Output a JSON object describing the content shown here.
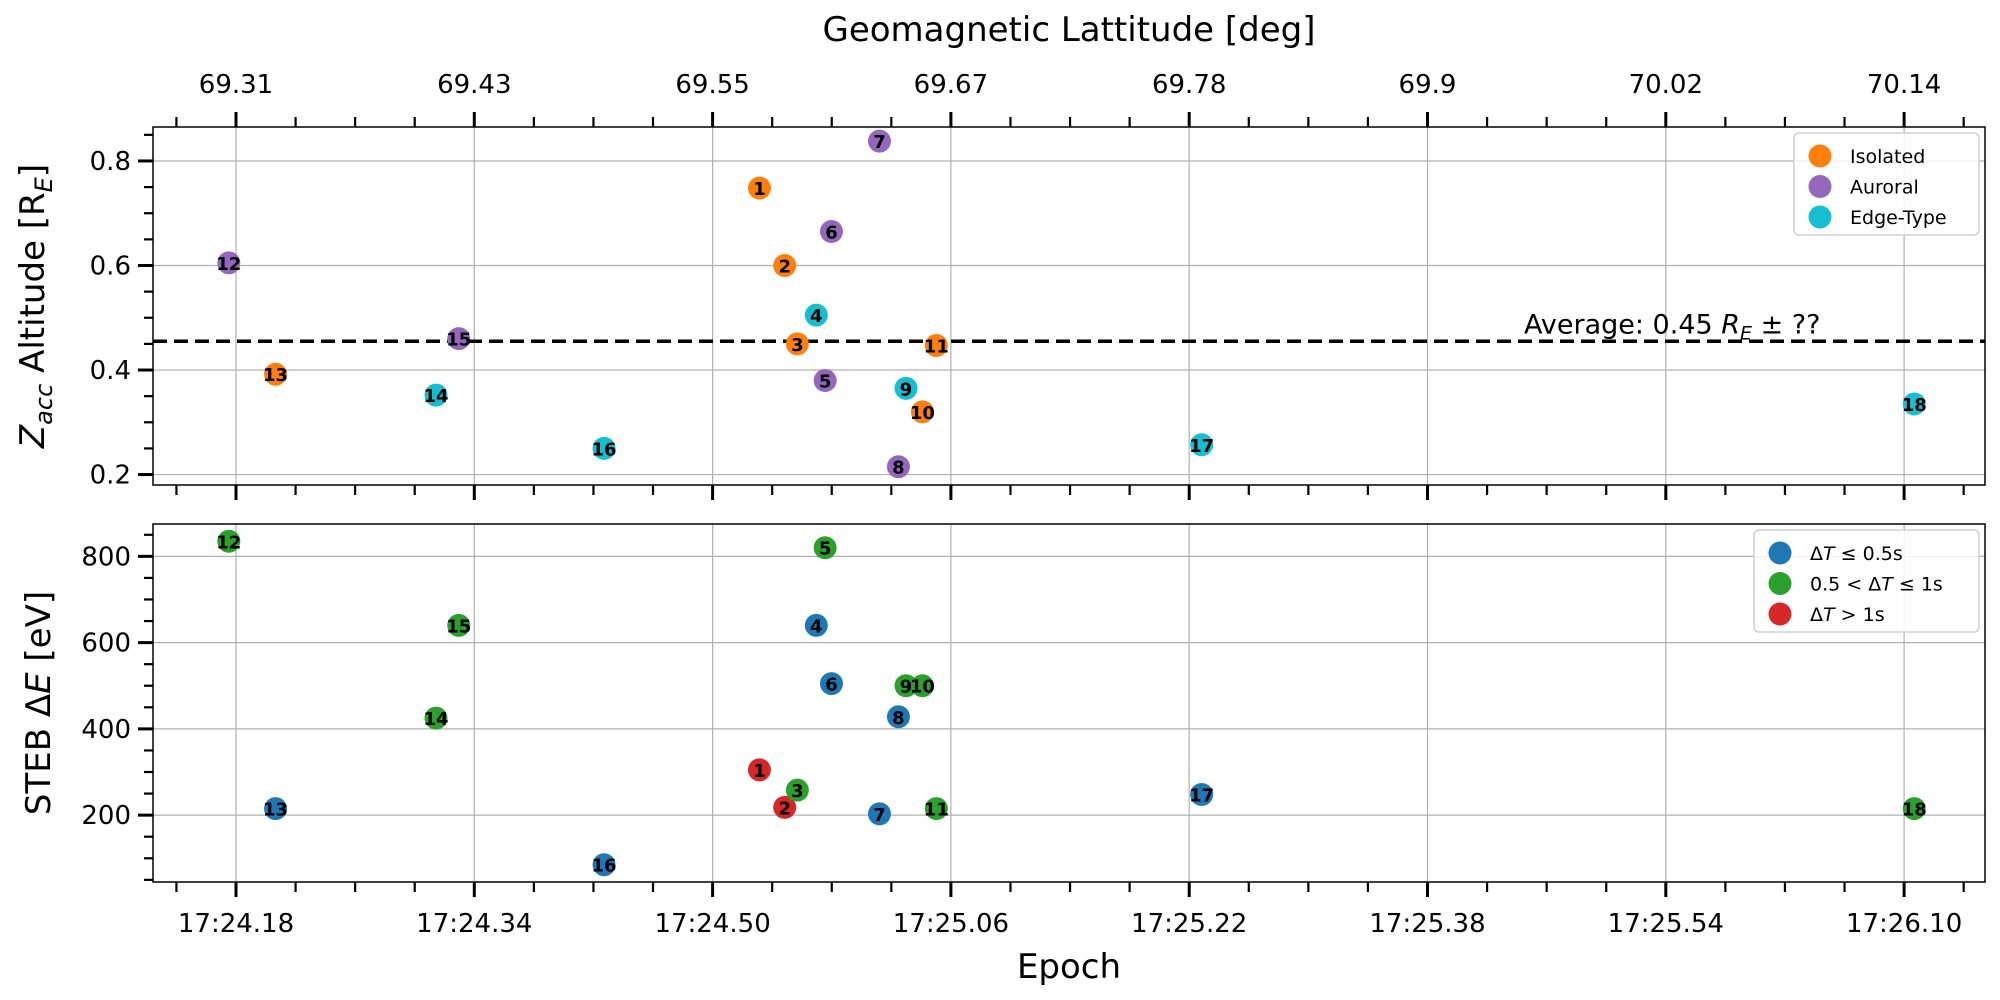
{
  "chart_data": [
    {
      "type": "scatter",
      "panel": "top",
      "top_axis_title": "Geomagnetic Lattitude [deg]",
      "top_tick_labels": [
        "69.31",
        "69.43",
        "69.55",
        "69.67",
        "69.78",
        "69.9",
        "70.02",
        "70.14"
      ],
      "ylabel": "Z_acc Altitude [R_E]",
      "ylabel_parts": {
        "main": "Z",
        "sub": "acc",
        "mid": " Altitude [R",
        "sub2": "E",
        "end": "]"
      },
      "y_ticks": [
        0.2,
        0.4,
        0.6,
        0.8
      ],
      "y_tick_labels": [
        "0.2",
        "0.4",
        "0.6",
        "0.8"
      ],
      "ylim": [
        0.18,
        0.865
      ],
      "grid": true,
      "legend_position": "top-right",
      "legend": [
        {
          "name": "Isolated",
          "color": "#ff7f0e"
        },
        {
          "name": "Auroral",
          "color": "#9467bd"
        },
        {
          "name": "Edge-Type",
          "color": "#17becf"
        }
      ],
      "average_line": {
        "y": 0.455,
        "style": "dashed"
      },
      "annotation": {
        "prefix": "Average: 0.45 ",
        "symbol": "R",
        "sub": "E",
        "suffix": " ± ??"
      },
      "points": [
        {
          "id": "1",
          "x": 24.6,
          "y": 0.748,
          "category": "Isolated"
        },
        {
          "id": "2",
          "x": 24.62,
          "y": 0.6,
          "category": "Isolated"
        },
        {
          "id": "3",
          "x": 24.63,
          "y": 0.45,
          "category": "Isolated"
        },
        {
          "id": "4",
          "x": 24.645,
          "y": 0.505,
          "category": "Edge-Type"
        },
        {
          "id": "5",
          "x": 24.652,
          "y": 0.38,
          "category": "Auroral"
        },
        {
          "id": "6",
          "x": 24.657,
          "y": 0.665,
          "category": "Auroral"
        },
        {
          "id": "7",
          "x": 24.695,
          "y": 0.838,
          "category": "Auroral"
        },
        {
          "id": "8",
          "x": 24.71,
          "y": 0.215,
          "category": "Auroral"
        },
        {
          "id": "9",
          "x": 24.716,
          "y": 0.365,
          "category": "Edge-Type"
        },
        {
          "id": "10",
          "x": 24.729,
          "y": 0.32,
          "category": "Isolated"
        },
        {
          "id": "11",
          "x": 24.74,
          "y": 0.447,
          "category": "Isolated"
        },
        {
          "id": "12",
          "x": 24.18,
          "y": 0.605,
          "category": "Auroral"
        },
        {
          "id": "13",
          "x": 24.217,
          "y": 0.392,
          "category": "Isolated"
        },
        {
          "id": "14",
          "x": 24.344,
          "y": 0.352,
          "category": "Edge-Type"
        },
        {
          "id": "15",
          "x": 24.362,
          "y": 0.46,
          "category": "Auroral"
        },
        {
          "id": "16",
          "x": 24.477,
          "y": 0.25,
          "category": "Edge-Type"
        },
        {
          "id": "17",
          "x": 24.95,
          "y": 0.257,
          "category": "Edge-Type"
        },
        {
          "id": "18",
          "x": 25.514,
          "y": 0.335,
          "category": "Edge-Type"
        }
      ]
    },
    {
      "type": "scatter",
      "panel": "bottom",
      "xlabel": "Epoch",
      "x_tick_labels": [
        "17:24.18",
        "17:24.34",
        "17:24.50",
        "17:25.06",
        "17:25.22",
        "17:25.38",
        "17:25.54",
        "17:26.10"
      ],
      "ylabel": "STEB ΔE [eV]",
      "ylabel_parts": {
        "main": "STEB Δ",
        "italic": "E",
        "end": " [eV]"
      },
      "y_ticks": [
        200,
        400,
        600,
        800
      ],
      "y_tick_labels": [
        "200",
        "400",
        "600",
        "800"
      ],
      "ylim": [
        45,
        875
      ],
      "grid": true,
      "legend_position": "top-right",
      "legend": [
        {
          "name": "ΔT ≤  0.5s",
          "color": "#1f77b4"
        },
        {
          "name": "0.5 < ΔT ≤  1s",
          "color": "#2ca02c"
        },
        {
          "name": "ΔT > 1s",
          "color": "#d62728"
        }
      ],
      "points": [
        {
          "id": "1",
          "x": 24.6,
          "y": 305,
          "category": "ΔT > 1s"
        },
        {
          "id": "2",
          "x": 24.62,
          "y": 218,
          "category": "ΔT > 1s"
        },
        {
          "id": "3",
          "x": 24.63,
          "y": 258,
          "category": "0.5 < ΔT ≤  1s"
        },
        {
          "id": "4",
          "x": 24.645,
          "y": 640,
          "category": "ΔT ≤  0.5s"
        },
        {
          "id": "5",
          "x": 24.652,
          "y": 820,
          "category": "0.5 < ΔT ≤  1s"
        },
        {
          "id": "6",
          "x": 24.657,
          "y": 505,
          "category": "ΔT ≤  0.5s"
        },
        {
          "id": "7",
          "x": 24.695,
          "y": 203,
          "category": "ΔT ≤  0.5s"
        },
        {
          "id": "8",
          "x": 24.71,
          "y": 428,
          "category": "ΔT ≤  0.5s"
        },
        {
          "id": "9",
          "x": 24.716,
          "y": 500,
          "category": "0.5 < ΔT ≤  1s"
        },
        {
          "id": "10",
          "x": 24.729,
          "y": 500,
          "category": "0.5 < ΔT ≤  1s"
        },
        {
          "id": "11",
          "x": 24.74,
          "y": 215,
          "category": "0.5 < ΔT ≤  1s"
        },
        {
          "id": "12",
          "x": 24.18,
          "y": 835,
          "category": "0.5 < ΔT ≤  1s"
        },
        {
          "id": "13",
          "x": 24.217,
          "y": 215,
          "category": "ΔT ≤  0.5s"
        },
        {
          "id": "14",
          "x": 24.344,
          "y": 425,
          "category": "0.5 < ΔT ≤  1s"
        },
        {
          "id": "15",
          "x": 24.362,
          "y": 640,
          "category": "0.5 < ΔT ≤  1s"
        },
        {
          "id": "16",
          "x": 24.477,
          "y": 85,
          "category": "ΔT ≤  0.5s"
        },
        {
          "id": "17",
          "x": 24.95,
          "y": 248,
          "category": "ΔT ≤  0.5s"
        },
        {
          "id": "18",
          "x": 25.514,
          "y": 215,
          "category": "0.5 < ΔT ≤  1s"
        }
      ]
    }
  ]
}
